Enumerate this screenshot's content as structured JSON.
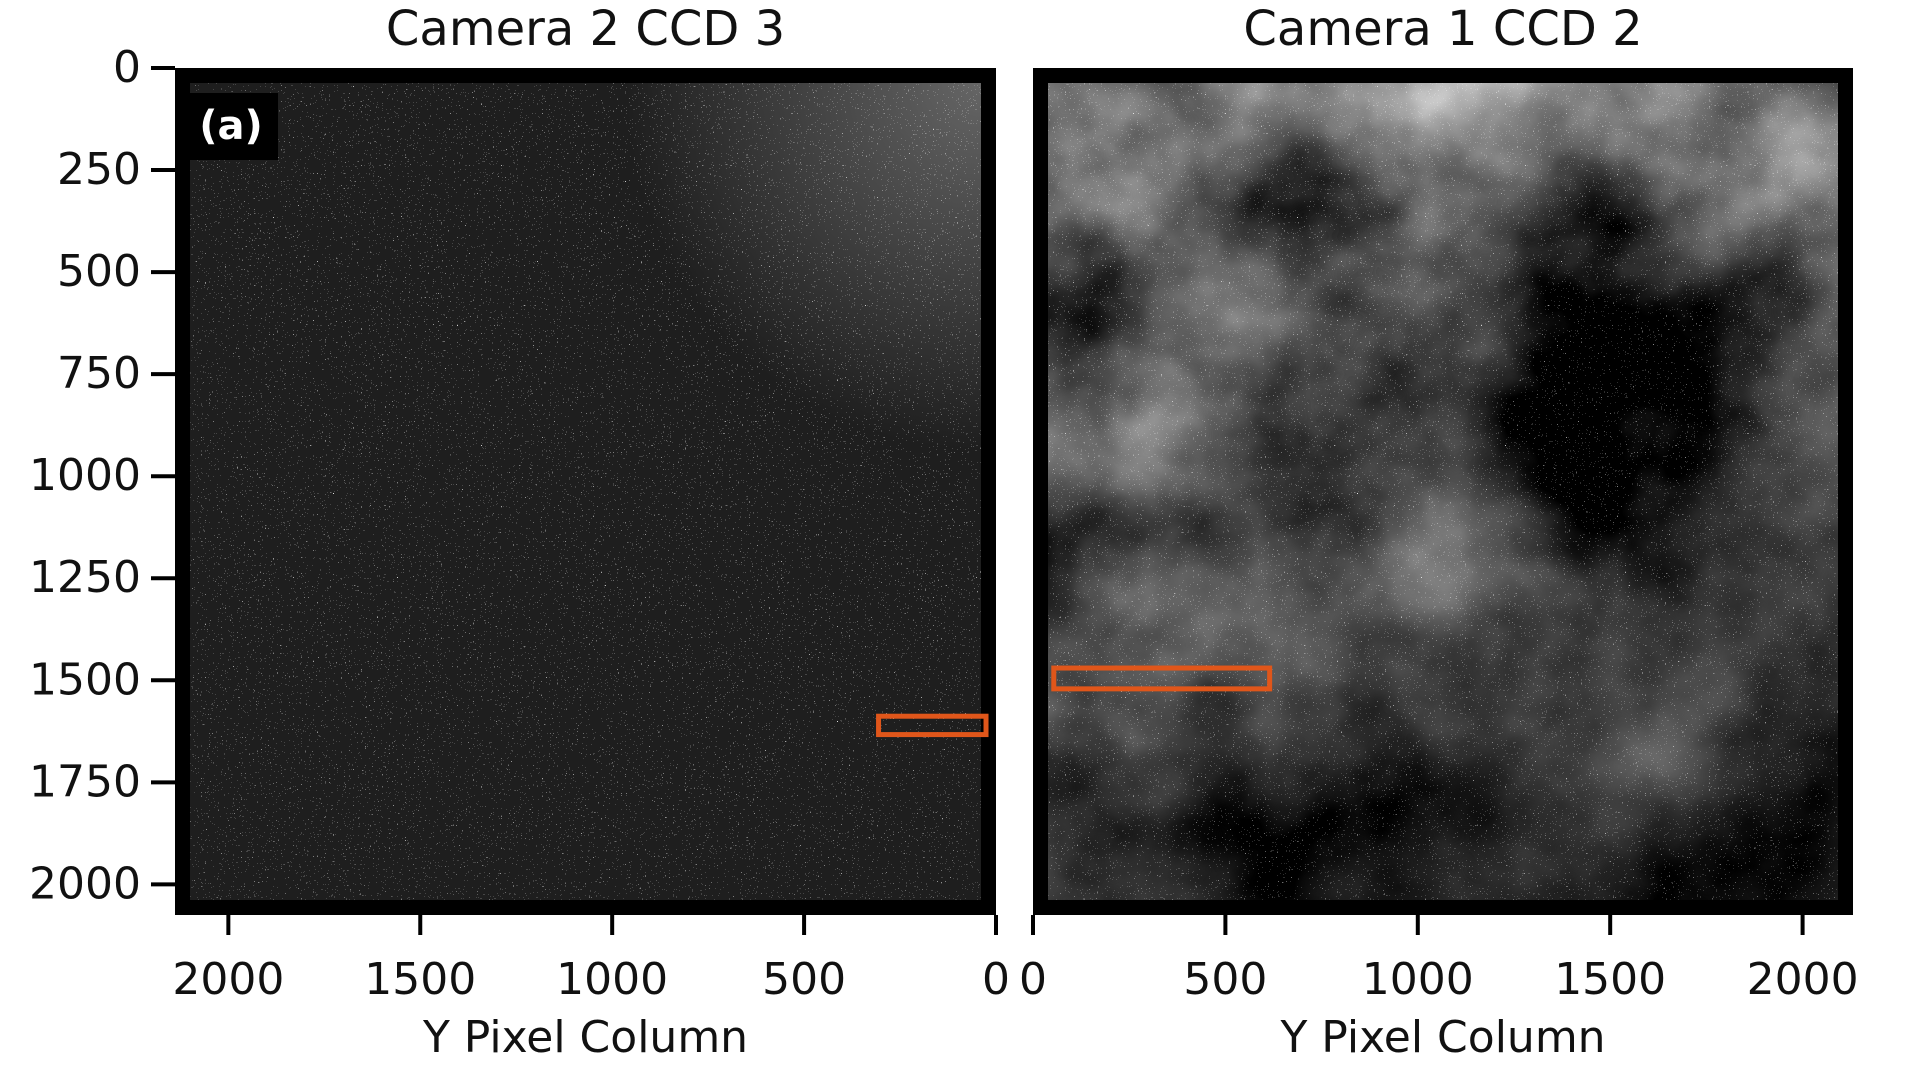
{
  "chart_data": [
    {
      "type": "image",
      "title": "Camera 2 CCD 3",
      "xlabel": "Y Pixel Column",
      "annotation": "(a)",
      "xlim": [
        2139,
        0
      ],
      "ylim": [
        2075,
        0
      ],
      "xticks": [
        2000,
        1500,
        1000,
        500,
        0
      ],
      "yticks": [
        0,
        250,
        500,
        750,
        1000,
        1250,
        1500,
        1750,
        2000
      ],
      "regions": [
        {
          "x": [
            26,
            306
          ],
          "y": [
            1588,
            1633
          ],
          "color": "#e0561a"
        }
      ]
    },
    {
      "type": "image",
      "title": "Camera 1 CCD 2",
      "xlabel": "Y Pixel Column",
      "xlim": [
        0,
        2131
      ],
      "ylim": [
        2075,
        0
      ],
      "xticks": [
        0,
        500,
        1000,
        1500,
        2000
      ],
      "regions": [
        {
          "x": [
            54,
            615
          ],
          "y": [
            1470,
            1521
          ],
          "color": "#e0561a"
        }
      ]
    }
  ]
}
